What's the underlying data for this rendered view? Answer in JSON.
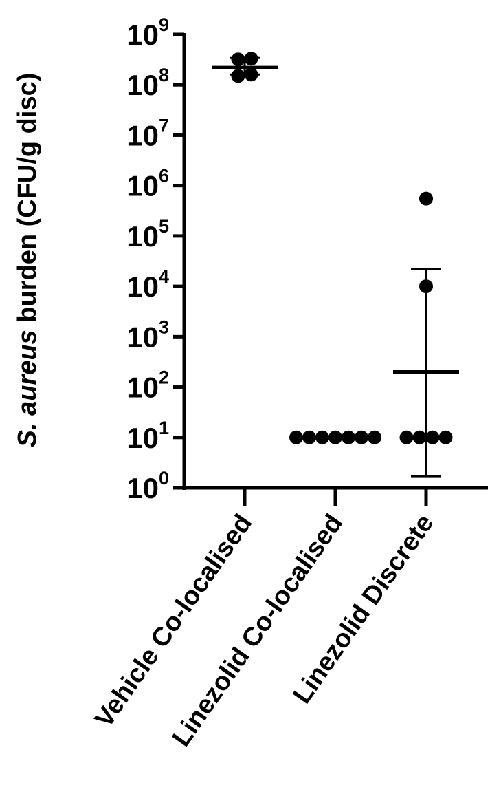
{
  "chart_data": {
    "type": "scatter",
    "ylabel": {
      "italic": "S. aureus",
      "rest": " burden (CFU/g disc)"
    },
    "yscale": "log",
    "ylim": [
      1,
      1000000000
    ],
    "yticks": [
      {
        "value": 1,
        "base": "10",
        "exp": "0"
      },
      {
        "value": 10,
        "base": "10",
        "exp": "1"
      },
      {
        "value": 100,
        "base": "10",
        "exp": "2"
      },
      {
        "value": 1000,
        "base": "10",
        "exp": "3"
      },
      {
        "value": 10000,
        "base": "10",
        "exp": "4"
      },
      {
        "value": 100000,
        "base": "10",
        "exp": "5"
      },
      {
        "value": 1000000,
        "base": "10",
        "exp": "6"
      },
      {
        "value": 10000000,
        "base": "10",
        "exp": "7"
      },
      {
        "value": 100000000,
        "base": "10",
        "exp": "8"
      },
      {
        "value": 1000000000,
        "base": "10",
        "exp": "9"
      }
    ],
    "categories": [
      "Vehicle Co-localised",
      "Linezolid Co-localised",
      "Linezolid Discrete"
    ],
    "groups": [
      {
        "category": "Vehicle Co-localised",
        "points": [
          150000000,
          160000000,
          320000000,
          330000000
        ],
        "mean": 220000000,
        "error_low": 160000000,
        "error_high": 340000000
      },
      {
        "category": "Linezolid Co-localised",
        "points": [
          10,
          10,
          10,
          10,
          10,
          10,
          10
        ],
        "mean": 10,
        "error_low": 10,
        "error_high": 10
      },
      {
        "category": "Linezolid Discrete",
        "points": [
          10,
          10,
          10,
          10,
          10000,
          550000
        ],
        "mean": 200,
        "error_low": 1.7,
        "error_high": 22000
      }
    ]
  },
  "colors": {
    "ink": "#000000",
    "background": "#ffffff"
  }
}
